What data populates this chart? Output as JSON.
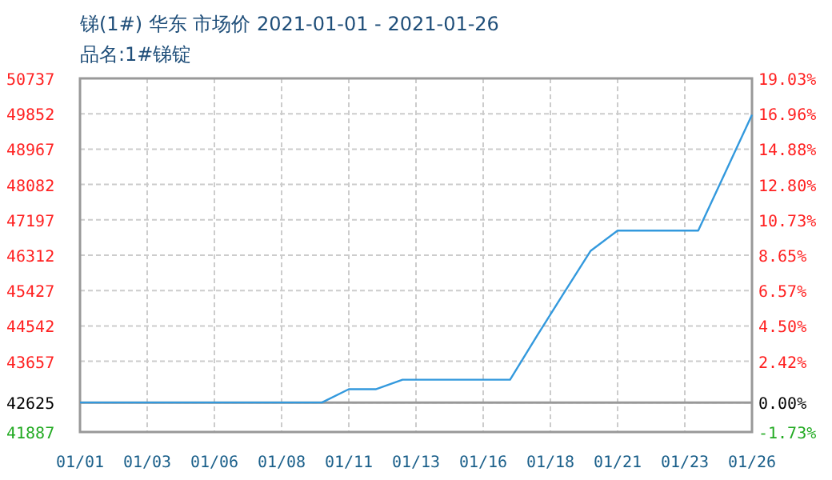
{
  "chart_data": {
    "type": "line",
    "title": "锑(1#) 华东 市场价 2021-01-01 - 2021-01-26",
    "subtitle": "品名:1#锑锭",
    "x": [
      "2021-01-01",
      "2021-01-02",
      "2021-01-03",
      "2021-01-04",
      "2021-01-05",
      "2021-01-06",
      "2021-01-07",
      "2021-01-08",
      "2021-01-09",
      "2021-01-10",
      "2021-01-11",
      "2021-01-12",
      "2021-01-13",
      "2021-01-14",
      "2021-01-15",
      "2021-01-16",
      "2021-01-17",
      "2021-01-18",
      "2021-01-19",
      "2021-01-20",
      "2021-01-21",
      "2021-01-22",
      "2021-01-23",
      "2021-01-24",
      "2021-01-25",
      "2021-01-26"
    ],
    "series": [
      {
        "color": "#3399dd",
        "values": [
          42625,
          42625,
          42625,
          42625,
          42625,
          42625,
          42625,
          42625,
          42625,
          42625,
          42958,
          42958,
          43196,
          43196,
          43196,
          43196,
          43196,
          44292,
          45363,
          46423,
          46927,
          46927,
          46927,
          46927,
          48375,
          49824
        ]
      }
    ],
    "xlim": [
      "2021-01-01",
      "2021-01-26"
    ],
    "xticks": [
      {
        "value": "2021-01-01",
        "label": "01/01"
      },
      {
        "value": "2021-01-03T12:00",
        "label": "01/03"
      },
      {
        "value": "2021-01-06",
        "label": "01/06"
      },
      {
        "value": "2021-01-08T12:00",
        "label": "01/08"
      },
      {
        "value": "2021-01-11",
        "label": "01/11"
      },
      {
        "value": "2021-01-13T12:00",
        "label": "01/13"
      },
      {
        "value": "2021-01-16",
        "label": "01/16"
      },
      {
        "value": "2021-01-18T12:00",
        "label": "01/18"
      },
      {
        "value": "2021-01-21",
        "label": "01/21"
      },
      {
        "value": "2021-01-23T12:00",
        "label": "01/23"
      },
      {
        "value": "2021-01-26",
        "label": "01/26"
      }
    ],
    "ylim": [
      41887,
      50737
    ],
    "yticks": [
      41887,
      42625,
      43657,
      44542,
      45427,
      46312,
      47197,
      48082,
      48967,
      49852,
      50737
    ],
    "y2lim": [
      -1.73,
      19.03
    ],
    "y2ticks": [
      {
        "value": -1.73,
        "label": "-1.73%"
      },
      {
        "value": 0,
        "label": "0.00%"
      },
      {
        "value": 2.42,
        "label": "2.42%"
      },
      {
        "value": 4.5,
        "label": "4.50%"
      },
      {
        "value": 6.57,
        "label": "6.57%"
      },
      {
        "value": 8.65,
        "label": "8.65%"
      },
      {
        "value": 10.73,
        "label": "10.73%"
      },
      {
        "value": 12.8,
        "label": "12.80%"
      },
      {
        "value": 14.88,
        "label": "14.88%"
      },
      {
        "value": 16.96,
        "label": "16.96%"
      },
      {
        "value": 19.03,
        "label": "19.03%"
      }
    ],
    "ref_lines": [
      {
        "axis": "y",
        "value": 42625,
        "color": "#999999"
      }
    ],
    "grid": true,
    "marker": "none",
    "line_style": "solid"
  }
}
